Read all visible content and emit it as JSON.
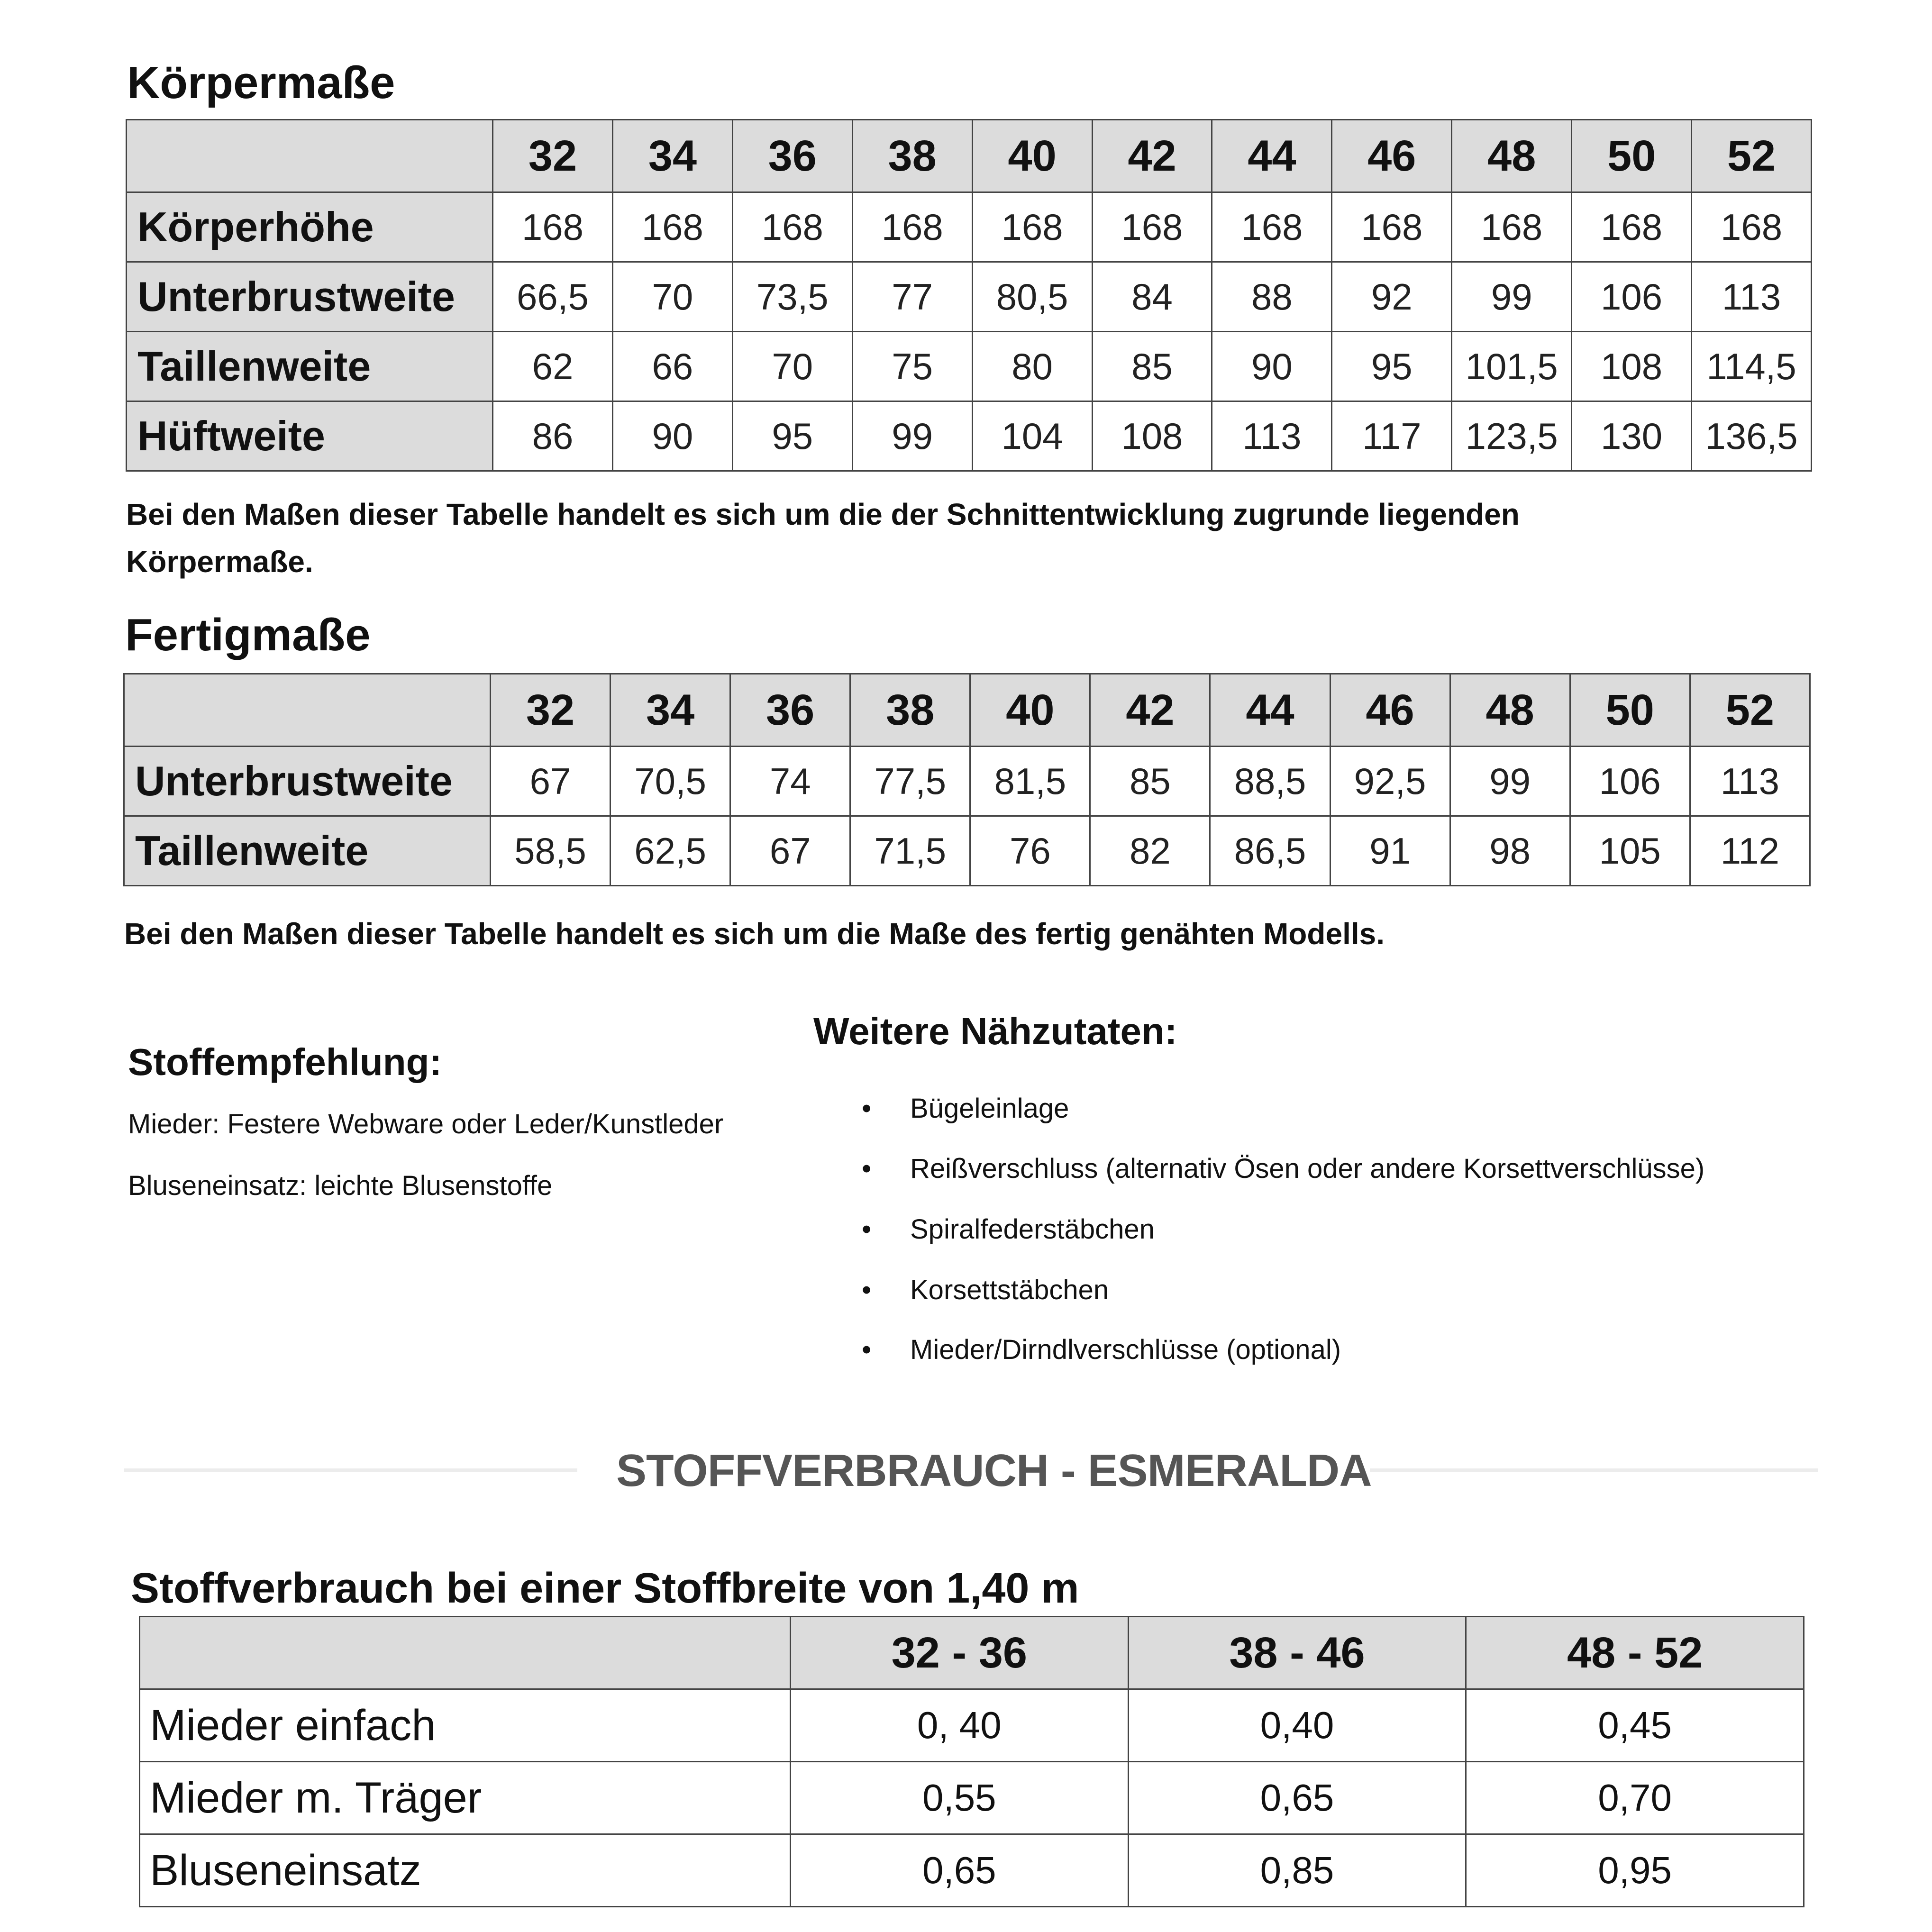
{
  "body_measurements": {
    "title": "Körpermaße",
    "sizes": [
      "32",
      "34",
      "36",
      "38",
      "40",
      "42",
      "44",
      "46",
      "48",
      "50",
      "52"
    ],
    "rows": [
      {
        "label": "Körperhöhe",
        "values": [
          "168",
          "168",
          "168",
          "168",
          "168",
          "168",
          "168",
          "168",
          "168",
          "168",
          "168"
        ]
      },
      {
        "label": "Unterbrustweite",
        "values": [
          "66,5",
          "70",
          "73,5",
          "77",
          "80,5",
          "84",
          "88",
          "92",
          "99",
          "106",
          "113"
        ]
      },
      {
        "label": "Taillenweite",
        "values": [
          "62",
          "66",
          "70",
          "75",
          "80",
          "85",
          "90",
          "95",
          "101,5",
          "108",
          "114,5"
        ]
      },
      {
        "label": "Hüftweite",
        "values": [
          "86",
          "90",
          "95",
          "99",
          "104",
          "108",
          "113",
          "117",
          "123,5",
          "130",
          "136,5"
        ]
      }
    ],
    "note_line1": "Bei den Maßen dieser Tabelle handelt es sich um die der Schnittentwicklung zugrunde liegenden",
    "note_line2": "Körpermaße."
  },
  "finished_measurements": {
    "title": "Fertigmaße",
    "sizes": [
      "32",
      "34",
      "36",
      "38",
      "40",
      "42",
      "44",
      "46",
      "48",
      "50",
      "52"
    ],
    "rows": [
      {
        "label": "Unterbrustweite",
        "values": [
          "67",
          "70,5",
          "74",
          "77,5",
          "81,5",
          "85",
          "88,5",
          "92,5",
          "99",
          "106",
          "113"
        ]
      },
      {
        "label": "Taillenweite",
        "values": [
          "58,5",
          "62,5",
          "67",
          "71,5",
          "76",
          "82",
          "86,5",
          "91",
          "98",
          "105",
          "112"
        ]
      }
    ],
    "note": "Bei den Maßen dieser Tabelle handelt es sich um die Maße des fertig genähten Modells."
  },
  "fabric_recommendation": {
    "title": "Stoffempfehlung:",
    "lines": [
      "Mieder: Festere Webware oder Leder/Kunstleder",
      "Bluseneinsatz: leichte Blusenstoffe"
    ]
  },
  "notions": {
    "title": "Weitere Nähzutaten:",
    "bullet": "•",
    "items": [
      "Bügeleinlage",
      "Reißverschluss (alternativ Ösen oder andere Korsettverschlüsse)",
      "Spiralfederstäbchen",
      "Korsettstäbchen",
      "Mieder/Dirndlverschlüsse (optional)"
    ]
  },
  "section_divider": {
    "title": "STOFFVERBRAUCH - ESMERALDA"
  },
  "fabric_usage": {
    "title": "Stoffverbrauch bei einer Stoffbreite von 1,40 m",
    "columns": [
      "32 - 36",
      "38 - 46",
      "48 - 52"
    ],
    "rows": [
      {
        "label": "Mieder einfach",
        "values": [
          "0, 40",
          "0,40",
          "0,45"
        ]
      },
      {
        "label": "Mieder m. Träger",
        "values": [
          "0,55",
          "0,65",
          "0,70"
        ]
      },
      {
        "label": "Bluseneinsatz",
        "values": [
          "0,65",
          "0,85",
          "0,95"
        ]
      }
    ]
  }
}
